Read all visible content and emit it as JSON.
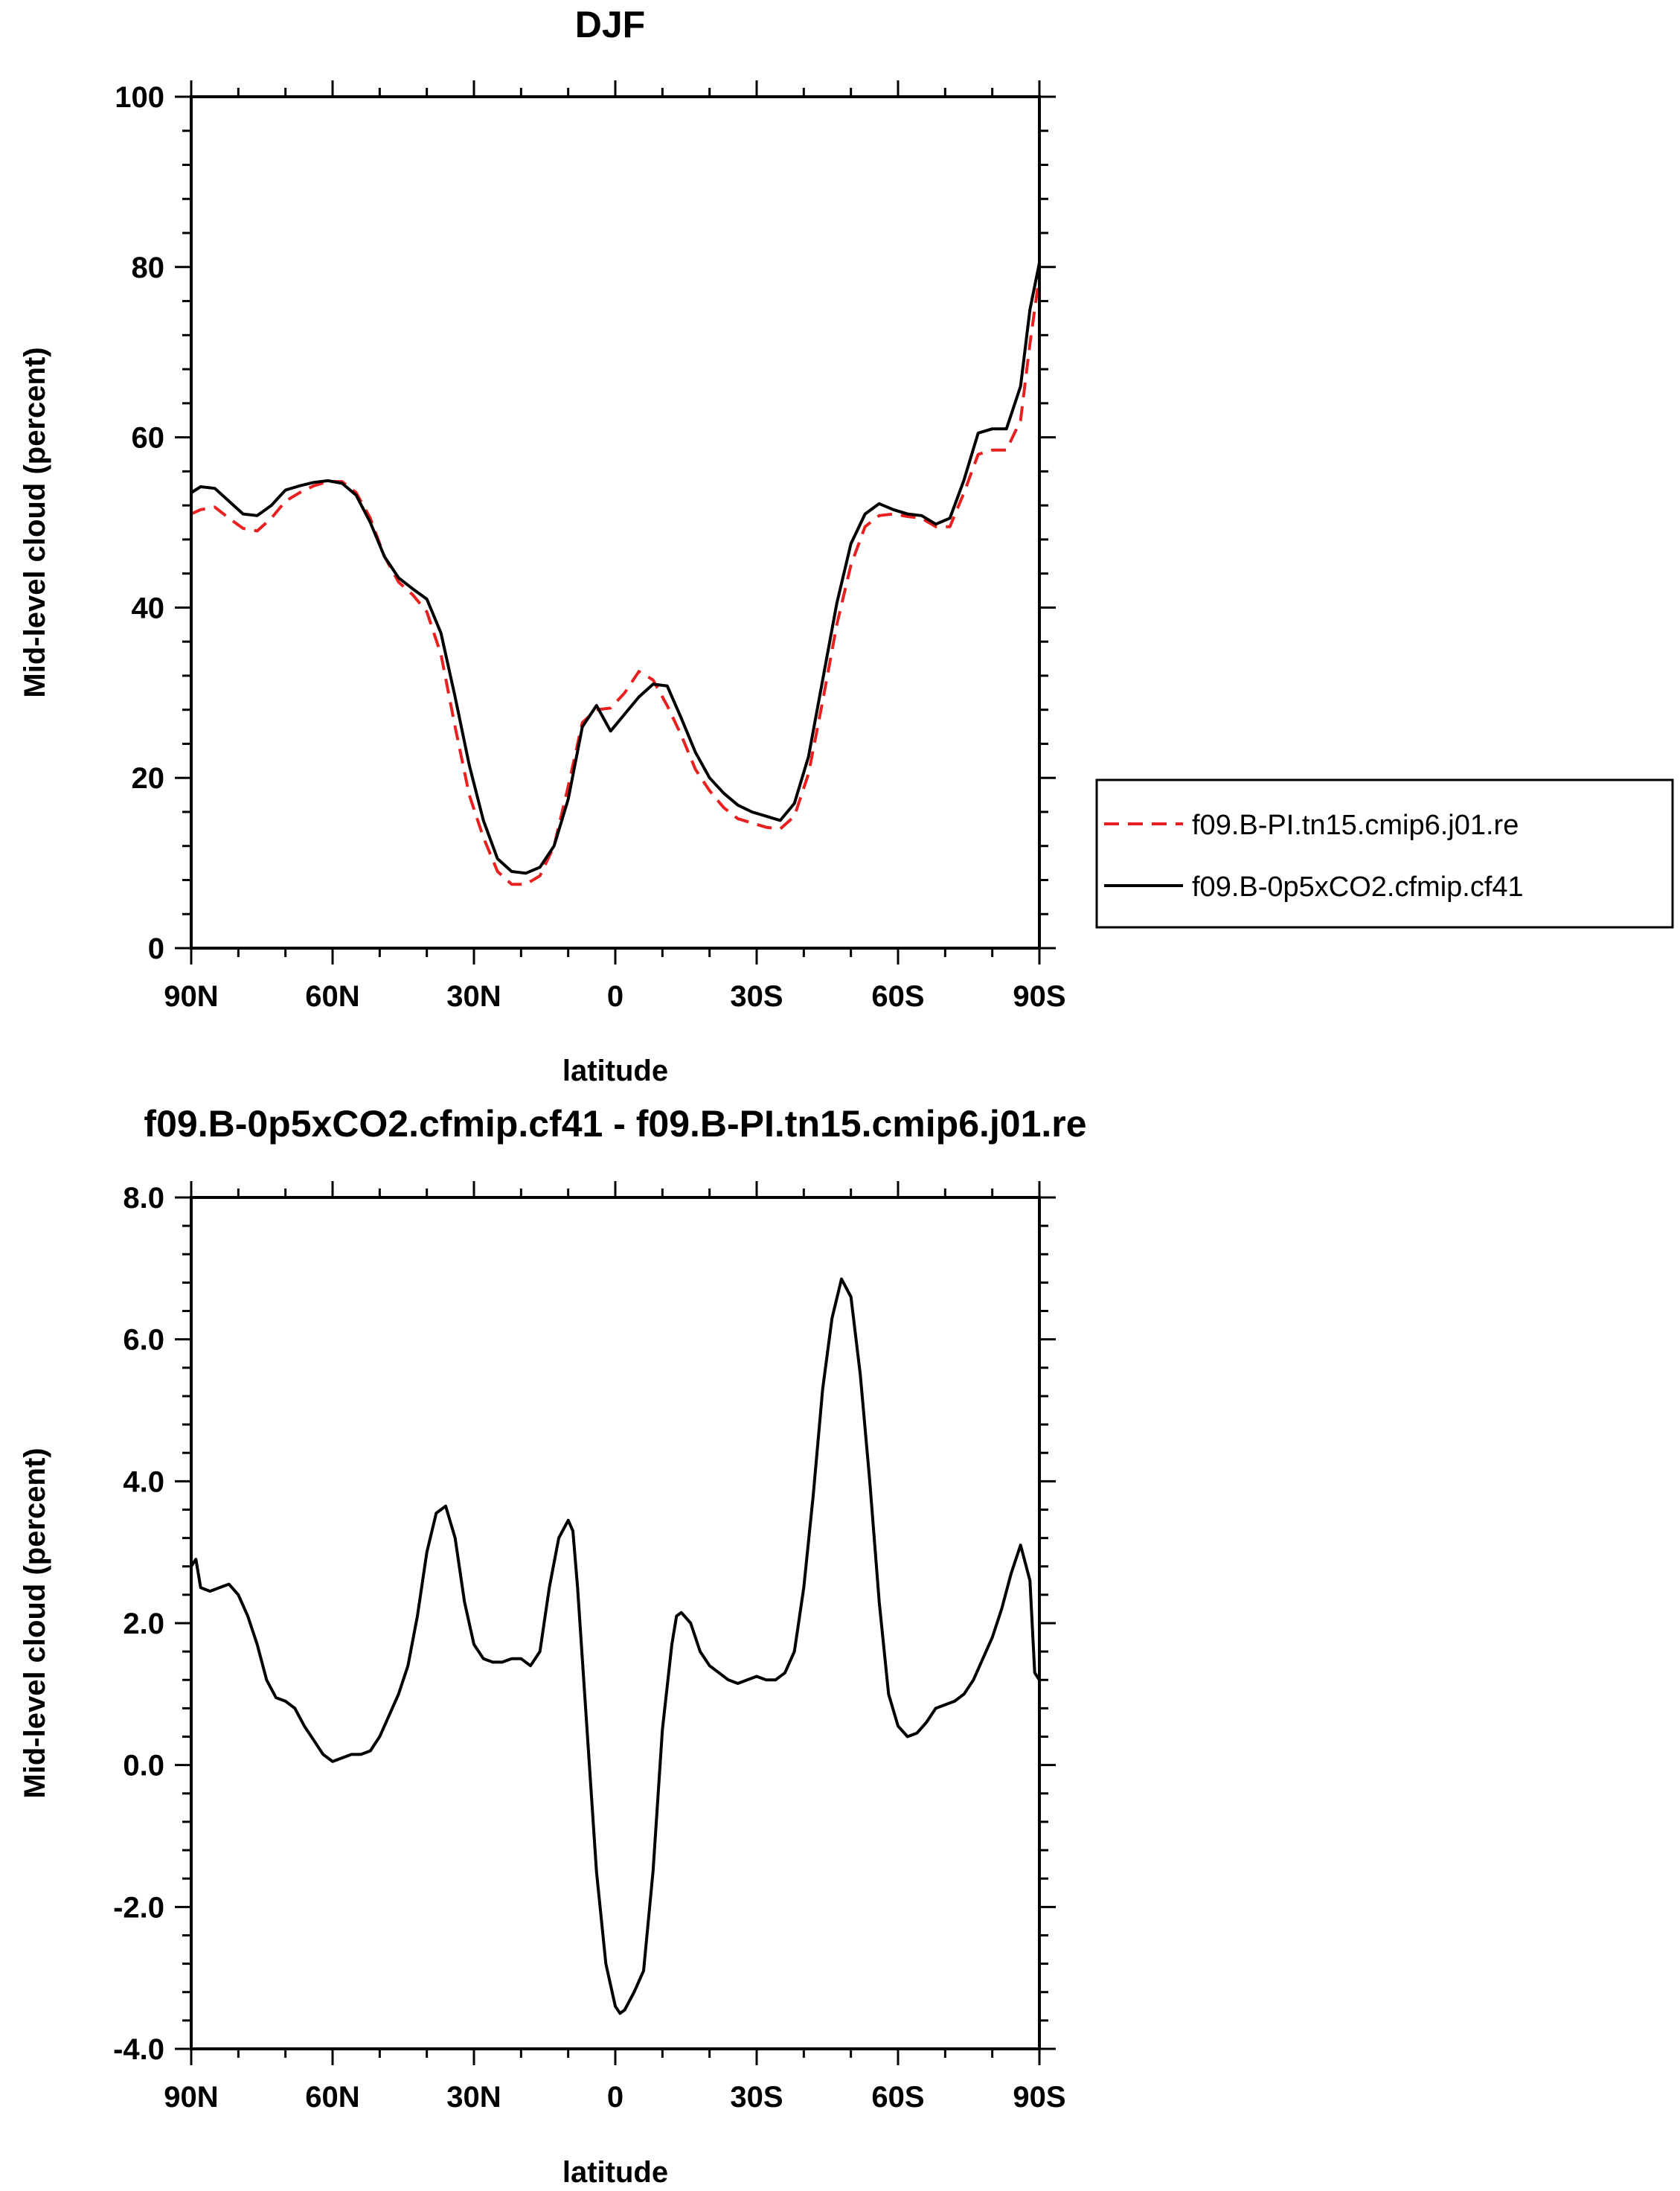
{
  "chart_data": [
    {
      "type": "line",
      "title": "DJF",
      "xlabel": "latitude",
      "ylabel": "Mid-level cloud (percent)",
      "xlim": [
        -90,
        90
      ],
      "ylim": [
        0,
        100
      ],
      "x_ticks": [
        -90,
        -60,
        -30,
        0,
        30,
        60,
        90
      ],
      "x_tick_labels": [
        "90N",
        "60N",
        "30N",
        "0",
        "30S",
        "60S",
        "90S"
      ],
      "y_ticks": [
        0,
        20,
        40,
        60,
        80,
        100
      ],
      "y_tick_labels": [
        "0",
        "20",
        "40",
        "60",
        "80",
        "100"
      ],
      "legend": "right",
      "series": [
        {
          "name": "f09.B-PI.tn15.cmip6.j01.re",
          "color": "#e8201f",
          "style": "dashed",
          "x": [
            -90,
            -88,
            -85,
            -82,
            -79,
            -76,
            -73,
            -70,
            -67,
            -64,
            -61,
            -58,
            -55,
            -52,
            -49,
            -46,
            -43,
            -40,
            -37,
            -34,
            -31,
            -28,
            -25,
            -22,
            -19,
            -16,
            -13,
            -10,
            -7,
            -4,
            -1,
            2,
            5,
            8,
            11,
            14,
            17,
            20,
            23,
            26,
            29,
            32,
            35,
            38,
            41,
            44,
            47,
            50,
            53,
            56,
            59,
            62,
            65,
            68,
            71,
            74,
            77,
            80,
            83,
            86,
            88,
            90
          ],
          "y": [
            51.0,
            51.5,
            51.8,
            50.5,
            49.3,
            49.0,
            50.5,
            52.5,
            53.5,
            54.3,
            54.8,
            54.8,
            53.5,
            50.5,
            46.0,
            43.0,
            41.5,
            39.5,
            34.5,
            26.0,
            18.0,
            13.0,
            9.0,
            7.5,
            7.5,
            8.5,
            12.0,
            19.0,
            26.5,
            28.0,
            28.2,
            30.0,
            32.5,
            31.5,
            28.5,
            25.0,
            21.0,
            18.5,
            16.5,
            15.2,
            14.7,
            14.2,
            14.0,
            15.5,
            20.5,
            29.0,
            38.0,
            45.0,
            49.5,
            50.8,
            51.0,
            50.7,
            50.5,
            49.5,
            49.5,
            53.5,
            58.0,
            58.5,
            58.5,
            62.0,
            71.0,
            79.0
          ]
        },
        {
          "name": "f09.B-0p5xCO2.cfmip.cf41",
          "color": "#000000",
          "style": "solid",
          "x": [
            -90,
            -88,
            -85,
            -82,
            -79,
            -76,
            -73,
            -70,
            -67,
            -64,
            -61,
            -58,
            -55,
            -52,
            -49,
            -46,
            -43,
            -40,
            -37,
            -34,
            -31,
            -28,
            -25,
            -22,
            -19,
            -16,
            -13,
            -10,
            -7,
            -4,
            -1,
            2,
            5,
            8,
            11,
            14,
            17,
            20,
            23,
            26,
            29,
            32,
            35,
            38,
            41,
            44,
            47,
            50,
            53,
            56,
            59,
            62,
            65,
            68,
            71,
            74,
            77,
            80,
            83,
            86,
            88,
            90
          ],
          "y": [
            53.5,
            54.2,
            54.0,
            52.5,
            51.0,
            50.8,
            52.0,
            53.8,
            54.3,
            54.7,
            54.9,
            54.6,
            53.2,
            50.0,
            46.0,
            43.5,
            42.2,
            41.0,
            37.0,
            29.5,
            21.5,
            15.0,
            10.5,
            9.0,
            8.8,
            9.5,
            12.0,
            17.5,
            26.0,
            28.5,
            25.5,
            27.5,
            29.5,
            31.0,
            30.8,
            27.0,
            23.0,
            20.0,
            18.2,
            16.8,
            16.0,
            15.5,
            15.0,
            17.0,
            22.5,
            31.5,
            40.5,
            47.5,
            51.0,
            52.2,
            51.5,
            51.0,
            50.8,
            49.8,
            50.5,
            55.0,
            60.5,
            61.0,
            61.0,
            66.0,
            75.0,
            80.5
          ]
        }
      ]
    },
    {
      "type": "line",
      "title": "f09.B-0p5xCO2.cfmip.cf41 - f09.B-PI.tn15.cmip6.j01.re",
      "xlabel": "latitude",
      "ylabel": "Mid-level cloud (percent)",
      "xlim": [
        -90,
        90
      ],
      "ylim": [
        -4.0,
        8.0
      ],
      "x_ticks": [
        -90,
        -60,
        -30,
        0,
        30,
        60,
        90
      ],
      "x_tick_labels": [
        "90N",
        "60N",
        "30N",
        "0",
        "30S",
        "60S",
        "90S"
      ],
      "y_ticks": [
        -4,
        -2,
        0,
        2,
        4,
        6,
        8
      ],
      "y_tick_labels": [
        "-4.0",
        "-2.0",
        "0.0",
        "2.0",
        "4.0",
        "6.0",
        "8.0"
      ],
      "series": [
        {
          "color": "#000000",
          "style": "solid",
          "x": [
            -90,
            -89,
            -88,
            -86,
            -84,
            -82,
            -80,
            -78,
            -76,
            -74,
            -72,
            -70,
            -68,
            -66,
            -64,
            -62,
            -60,
            -58,
            -56,
            -54,
            -52,
            -50,
            -48,
            -46,
            -44,
            -42,
            -40,
            -38,
            -36,
            -34,
            -32,
            -30,
            -28,
            -26,
            -24,
            -22,
            -20,
            -18,
            -16,
            -14,
            -12,
            -10,
            -9,
            -8,
            -6,
            -4,
            -2,
            0,
            1,
            2,
            4,
            6,
            8,
            10,
            12,
            13,
            14,
            16,
            18,
            20,
            22,
            24,
            26,
            28,
            30,
            32,
            34,
            36,
            38,
            40,
            42,
            44,
            46,
            48,
            50,
            52,
            54,
            56,
            58,
            60,
            62,
            64,
            66,
            68,
            70,
            72,
            74,
            76,
            78,
            80,
            82,
            84,
            86,
            88,
            89,
            90
          ],
          "y": [
            2.8,
            2.9,
            2.5,
            2.45,
            2.5,
            2.55,
            2.4,
            2.1,
            1.7,
            1.2,
            0.95,
            0.9,
            0.8,
            0.55,
            0.35,
            0.15,
            0.05,
            0.1,
            0.15,
            0.15,
            0.2,
            0.4,
            0.7,
            1.0,
            1.4,
            2.1,
            3.0,
            3.55,
            3.65,
            3.2,
            2.3,
            1.7,
            1.5,
            1.45,
            1.45,
            1.5,
            1.5,
            1.4,
            1.6,
            2.5,
            3.2,
            3.45,
            3.3,
            2.5,
            0.5,
            -1.5,
            -2.8,
            -3.4,
            -3.5,
            -3.45,
            -3.2,
            -2.9,
            -1.5,
            0.5,
            1.7,
            2.1,
            2.15,
            2.0,
            1.6,
            1.4,
            1.3,
            1.2,
            1.15,
            1.2,
            1.25,
            1.2,
            1.2,
            1.3,
            1.6,
            2.5,
            3.8,
            5.3,
            6.3,
            6.85,
            6.6,
            5.5,
            4.0,
            2.3,
            1.0,
            0.55,
            0.4,
            0.45,
            0.6,
            0.8,
            0.85,
            0.9,
            1.0,
            1.2,
            1.5,
            1.8,
            2.2,
            2.7,
            3.1,
            2.6,
            1.3,
            1.2
          ]
        }
      ]
    }
  ]
}
